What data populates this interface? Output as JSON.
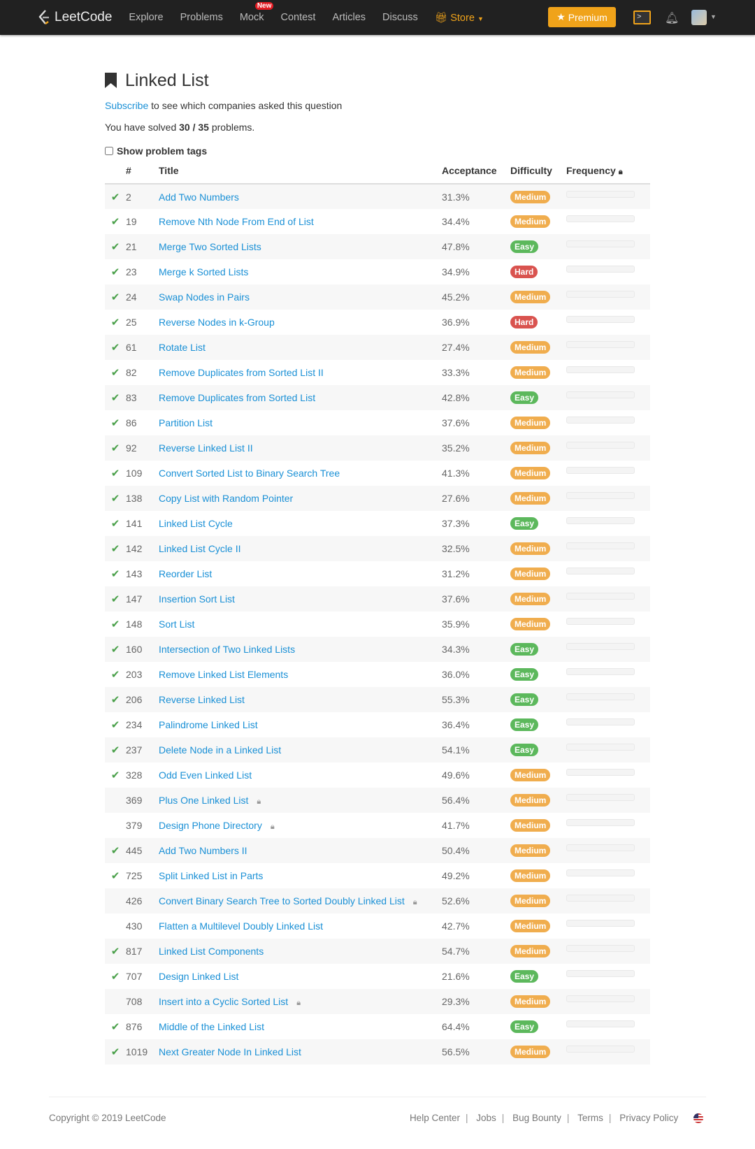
{
  "nav": {
    "brand": "LeetCode",
    "items": [
      "Explore",
      "Problems",
      "Mock",
      "Contest",
      "Articles",
      "Discuss"
    ],
    "new_badge": "New",
    "store": "Store",
    "premium": "Premium",
    "accent": "#f0a31a"
  },
  "header": {
    "title": "Linked List",
    "subscribe_link": "Subscribe",
    "subscribe_text": " to see which companies asked this question",
    "solved_prefix": "You have solved ",
    "solved_count": "30 / 35",
    "solved_suffix": " problems.",
    "show_tags": "Show problem tags"
  },
  "table": {
    "columns": [
      "#",
      "Title",
      "Acceptance",
      "Difficulty",
      "Frequency"
    ],
    "rows": [
      {
        "solved": true,
        "id": "2",
        "title": "Add Two Numbers",
        "acc": "31.3%",
        "diff": "Medium",
        "locked": false
      },
      {
        "solved": true,
        "id": "19",
        "title": "Remove Nth Node From End of List",
        "acc": "34.4%",
        "diff": "Medium",
        "locked": false
      },
      {
        "solved": true,
        "id": "21",
        "title": "Merge Two Sorted Lists",
        "acc": "47.8%",
        "diff": "Easy",
        "locked": false
      },
      {
        "solved": true,
        "id": "23",
        "title": "Merge k Sorted Lists",
        "acc": "34.9%",
        "diff": "Hard",
        "locked": false
      },
      {
        "solved": true,
        "id": "24",
        "title": "Swap Nodes in Pairs",
        "acc": "45.2%",
        "diff": "Medium",
        "locked": false
      },
      {
        "solved": true,
        "id": "25",
        "title": "Reverse Nodes in k-Group",
        "acc": "36.9%",
        "diff": "Hard",
        "locked": false
      },
      {
        "solved": true,
        "id": "61",
        "title": "Rotate List",
        "acc": "27.4%",
        "diff": "Medium",
        "locked": false
      },
      {
        "solved": true,
        "id": "82",
        "title": "Remove Duplicates from Sorted List II",
        "acc": "33.3%",
        "diff": "Medium",
        "locked": false
      },
      {
        "solved": true,
        "id": "83",
        "title": "Remove Duplicates from Sorted List",
        "acc": "42.8%",
        "diff": "Easy",
        "locked": false
      },
      {
        "solved": true,
        "id": "86",
        "title": "Partition List",
        "acc": "37.6%",
        "diff": "Medium",
        "locked": false
      },
      {
        "solved": true,
        "id": "92",
        "title": "Reverse Linked List II",
        "acc": "35.2%",
        "diff": "Medium",
        "locked": false
      },
      {
        "solved": true,
        "id": "109",
        "title": "Convert Sorted List to Binary Search Tree",
        "acc": "41.3%",
        "diff": "Medium",
        "locked": false
      },
      {
        "solved": true,
        "id": "138",
        "title": "Copy List with Random Pointer",
        "acc": "27.6%",
        "diff": "Medium",
        "locked": false
      },
      {
        "solved": true,
        "id": "141",
        "title": "Linked List Cycle",
        "acc": "37.3%",
        "diff": "Easy",
        "locked": false
      },
      {
        "solved": true,
        "id": "142",
        "title": "Linked List Cycle II",
        "acc": "32.5%",
        "diff": "Medium",
        "locked": false
      },
      {
        "solved": true,
        "id": "143",
        "title": "Reorder List",
        "acc": "31.2%",
        "diff": "Medium",
        "locked": false
      },
      {
        "solved": true,
        "id": "147",
        "title": "Insertion Sort List",
        "acc": "37.6%",
        "diff": "Medium",
        "locked": false
      },
      {
        "solved": true,
        "id": "148",
        "title": "Sort List",
        "acc": "35.9%",
        "diff": "Medium",
        "locked": false
      },
      {
        "solved": true,
        "id": "160",
        "title": "Intersection of Two Linked Lists",
        "acc": "34.3%",
        "diff": "Easy",
        "locked": false
      },
      {
        "solved": true,
        "id": "203",
        "title": "Remove Linked List Elements",
        "acc": "36.0%",
        "diff": "Easy",
        "locked": false
      },
      {
        "solved": true,
        "id": "206",
        "title": "Reverse Linked List",
        "acc": "55.3%",
        "diff": "Easy",
        "locked": false
      },
      {
        "solved": true,
        "id": "234",
        "title": "Palindrome Linked List",
        "acc": "36.4%",
        "diff": "Easy",
        "locked": false
      },
      {
        "solved": true,
        "id": "237",
        "title": "Delete Node in a Linked List",
        "acc": "54.1%",
        "diff": "Easy",
        "locked": false
      },
      {
        "solved": true,
        "id": "328",
        "title": "Odd Even Linked List",
        "acc": "49.6%",
        "diff": "Medium",
        "locked": false
      },
      {
        "solved": false,
        "id": "369",
        "title": "Plus One Linked List",
        "acc": "56.4%",
        "diff": "Medium",
        "locked": true
      },
      {
        "solved": false,
        "id": "379",
        "title": "Design Phone Directory",
        "acc": "41.7%",
        "diff": "Medium",
        "locked": true
      },
      {
        "solved": true,
        "id": "445",
        "title": "Add Two Numbers II",
        "acc": "50.4%",
        "diff": "Medium",
        "locked": false
      },
      {
        "solved": true,
        "id": "725",
        "title": "Split Linked List in Parts",
        "acc": "49.2%",
        "diff": "Medium",
        "locked": false
      },
      {
        "solved": false,
        "id": "426",
        "title": "Convert Binary Search Tree to Sorted Doubly Linked List",
        "acc": "52.6%",
        "diff": "Medium",
        "locked": true
      },
      {
        "solved": false,
        "id": "430",
        "title": "Flatten a Multilevel Doubly Linked List",
        "acc": "42.7%",
        "diff": "Medium",
        "locked": false
      },
      {
        "solved": true,
        "id": "817",
        "title": "Linked List Components",
        "acc": "54.7%",
        "diff": "Medium",
        "locked": false
      },
      {
        "solved": true,
        "id": "707",
        "title": "Design Linked List",
        "acc": "21.6%",
        "diff": "Easy",
        "locked": false
      },
      {
        "solved": false,
        "id": "708",
        "title": "Insert into a Cyclic Sorted List",
        "acc": "29.3%",
        "diff": "Medium",
        "locked": true
      },
      {
        "solved": true,
        "id": "876",
        "title": "Middle of the Linked List",
        "acc": "64.4%",
        "diff": "Easy",
        "locked": false
      },
      {
        "solved": true,
        "id": "1019",
        "title": "Next Greater Node In Linked List",
        "acc": "56.5%",
        "diff": "Medium",
        "locked": false
      }
    ]
  },
  "difficulty_colors": {
    "Easy": "#5cb85c",
    "Medium": "#f0ad4e",
    "Hard": "#d9534f"
  },
  "footer": {
    "copyright": "Copyright © 2019 LeetCode",
    "links": [
      "Help Center",
      "Jobs",
      "Bug Bounty",
      "Terms",
      "Privacy Policy"
    ]
  }
}
